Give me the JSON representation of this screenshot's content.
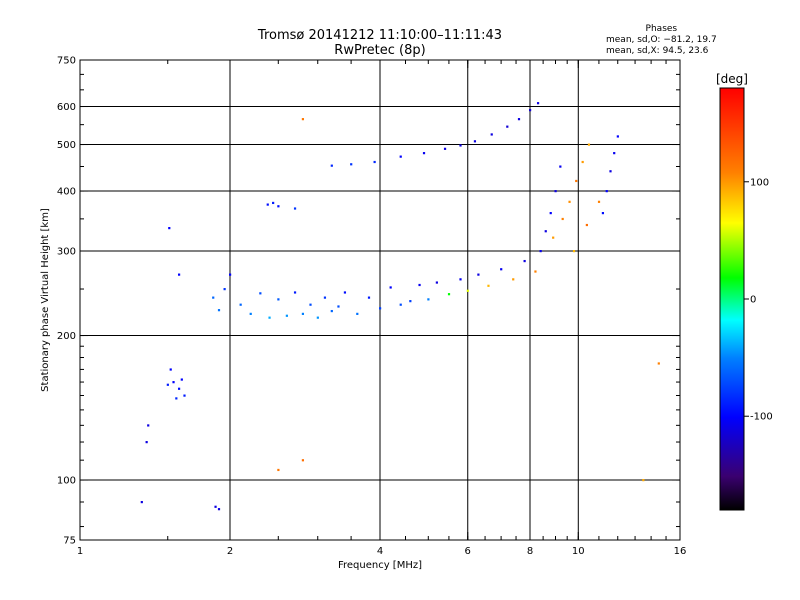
{
  "title_line1": "Tromsø 20141212 11:10:00–11:11:43",
  "title_line2": "RwPretec (8p)",
  "phase_stats": {
    "header": "Phases",
    "line_o": "mean, sd,O: −81.2, 19.7",
    "line_x": "mean, sd,X:  94.5, 23.6"
  },
  "chart_data": {
    "type": "scatter",
    "xlabel": "Frequency [MHz]",
    "ylabel": "Stationary phase Virtual Height [km]",
    "x_scale": "log",
    "y_scale": "log",
    "xlim": [
      1,
      16
    ],
    "ylim": [
      75,
      750
    ],
    "x_ticks": [
      1,
      2,
      4,
      6,
      8,
      10,
      16
    ],
    "y_ticks": [
      75,
      100,
      200,
      300,
      400,
      500,
      600,
      750
    ],
    "grid": true,
    "colorbar": {
      "label": "[deg]",
      "range": [
        -180,
        180
      ],
      "ticks": [
        100,
        0,
        -100
      ]
    },
    "series": [
      {
        "points": [
          [
            1.33,
            90,
            -110
          ],
          [
            1.87,
            88,
            -110
          ],
          [
            1.9,
            87,
            -110
          ],
          [
            1.37,
            130,
            -110
          ],
          [
            1.36,
            120,
            -110
          ],
          [
            1.5,
            158,
            -90
          ],
          [
            1.54,
            160,
            -100
          ],
          [
            1.58,
            155,
            -95
          ],
          [
            1.62,
            150,
            -90
          ],
          [
            1.52,
            170,
            -100
          ],
          [
            1.56,
            148,
            -85
          ],
          [
            1.6,
            162,
            -100
          ],
          [
            1.51,
            335,
            -100
          ],
          [
            1.58,
            268,
            -100
          ],
          [
            2.38,
            375,
            -95
          ],
          [
            2.44,
            378,
            -90
          ],
          [
            2.5,
            372,
            -95
          ],
          [
            2.7,
            368,
            -80
          ],
          [
            3.2,
            452,
            -85
          ],
          [
            3.5,
            455,
            -80
          ],
          [
            3.9,
            460,
            -85
          ],
          [
            4.4,
            472,
            -100
          ],
          [
            4.9,
            480,
            -105
          ],
          [
            5.4,
            490,
            -110
          ],
          [
            5.8,
            498,
            -110
          ],
          [
            6.2,
            508,
            -110
          ],
          [
            6.7,
            525,
            -110
          ],
          [
            7.2,
            545,
            -115
          ],
          [
            7.6,
            565,
            -110
          ],
          [
            8.0,
            590,
            -115
          ],
          [
            8.3,
            610,
            -110
          ],
          [
            1.85,
            240,
            -60
          ],
          [
            1.9,
            226,
            -55
          ],
          [
            1.95,
            250,
            -80
          ],
          [
            2.0,
            268,
            -100
          ],
          [
            2.1,
            232,
            -60
          ],
          [
            2.2,
            222,
            -50
          ],
          [
            2.3,
            245,
            -70
          ],
          [
            2.4,
            218,
            -40
          ],
          [
            2.5,
            238,
            -65
          ],
          [
            2.6,
            220,
            -45
          ],
          [
            2.7,
            246,
            -90
          ],
          [
            2.8,
            222,
            -50
          ],
          [
            2.9,
            232,
            -70
          ],
          [
            3.0,
            218,
            -45
          ],
          [
            3.1,
            240,
            -80
          ],
          [
            3.2,
            225,
            -60
          ],
          [
            3.3,
            230,
            -70
          ],
          [
            3.4,
            246,
            -95
          ],
          [
            3.6,
            222,
            -55
          ],
          [
            3.8,
            240,
            -90
          ],
          [
            4.0,
            228,
            -75
          ],
          [
            4.2,
            252,
            -100
          ],
          [
            4.4,
            232,
            -70
          ],
          [
            4.6,
            236,
            -75
          ],
          [
            4.8,
            255,
            -105
          ],
          [
            5.0,
            238,
            -50
          ],
          [
            5.2,
            258,
            -110
          ],
          [
            5.5,
            244,
            20
          ],
          [
            5.8,
            262,
            -105
          ],
          [
            6.0,
            248,
            60
          ],
          [
            6.3,
            268,
            -110
          ],
          [
            6.6,
            254,
            90
          ],
          [
            7.0,
            275,
            -105
          ],
          [
            7.4,
            262,
            100
          ],
          [
            7.8,
            286,
            -110
          ],
          [
            8.2,
            272,
            110
          ],
          [
            8.4,
            300,
            -105
          ],
          [
            8.6,
            330,
            -110
          ],
          [
            8.8,
            360,
            -100
          ],
          [
            9.0,
            400,
            -110
          ],
          [
            9.2,
            450,
            -105
          ],
          [
            8.9,
            320,
            100
          ],
          [
            9.3,
            350,
            110
          ],
          [
            9.6,
            380,
            105
          ],
          [
            9.9,
            420,
            115
          ],
          [
            10.2,
            460,
            100
          ],
          [
            10.5,
            500,
            95
          ],
          [
            9.8,
            300,
            90
          ],
          [
            10.4,
            340,
            120
          ],
          [
            11.0,
            380,
            110
          ],
          [
            11.4,
            400,
            -100
          ],
          [
            11.6,
            440,
            -110
          ],
          [
            11.8,
            480,
            -105
          ],
          [
            12.0,
            520,
            -100
          ],
          [
            11.2,
            360,
            -95
          ],
          [
            14.5,
            175,
            110
          ],
          [
            2.8,
            110,
            120
          ],
          [
            2.5,
            105,
            115
          ],
          [
            2.8,
            565,
            115
          ],
          [
            13.5,
            100,
            95
          ]
        ]
      }
    ]
  }
}
